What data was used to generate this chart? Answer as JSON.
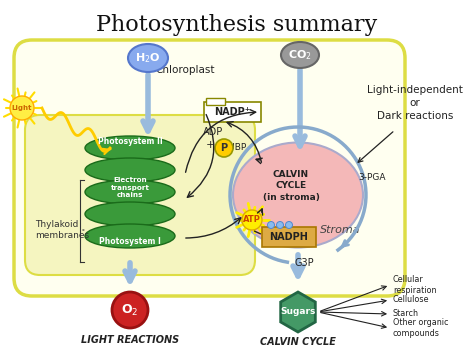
{
  "title": "Photosynthesis summary",
  "title_fontsize": 16,
  "bg_color": "#ffffff",
  "chloroplast_fill": "#fffff0",
  "chloroplast_edge": "#dddd44",
  "thylakoid_fill": "#3a9a3a",
  "thylakoid_edge": "#1a6b1a",
  "calvin_fill": "#f4b8b8",
  "calvin_edge": "#aaaacc",
  "h2o_fill": "#7799ee",
  "co2_fill": "#999999",
  "o2_fill": "#cc2222",
  "sugars_fill": "#449966",
  "nadp_fill": "#ffffff",
  "nadph_fill": "#ddaa44",
  "atp_fill": "#ffee00",
  "arrow_color": "#99bbdd",
  "dark_arrow": "#222222",
  "light_independent_text": "Light-independent\nor\nDark reactions",
  "stroma_text": "Stroma",
  "chloroplast_label": "Chloroplast",
  "thylakoid_label": "Thylakoid\nmembranes",
  "light_reactions_label": "LIGHT REACTIONS",
  "calvin_cycle_label": "CALVIN CYCLE",
  "light_label": "Light",
  "products": [
    "Cellular\nrespiration",
    "Cellulose",
    "Starch",
    "Other organic\ncompounds"
  ]
}
